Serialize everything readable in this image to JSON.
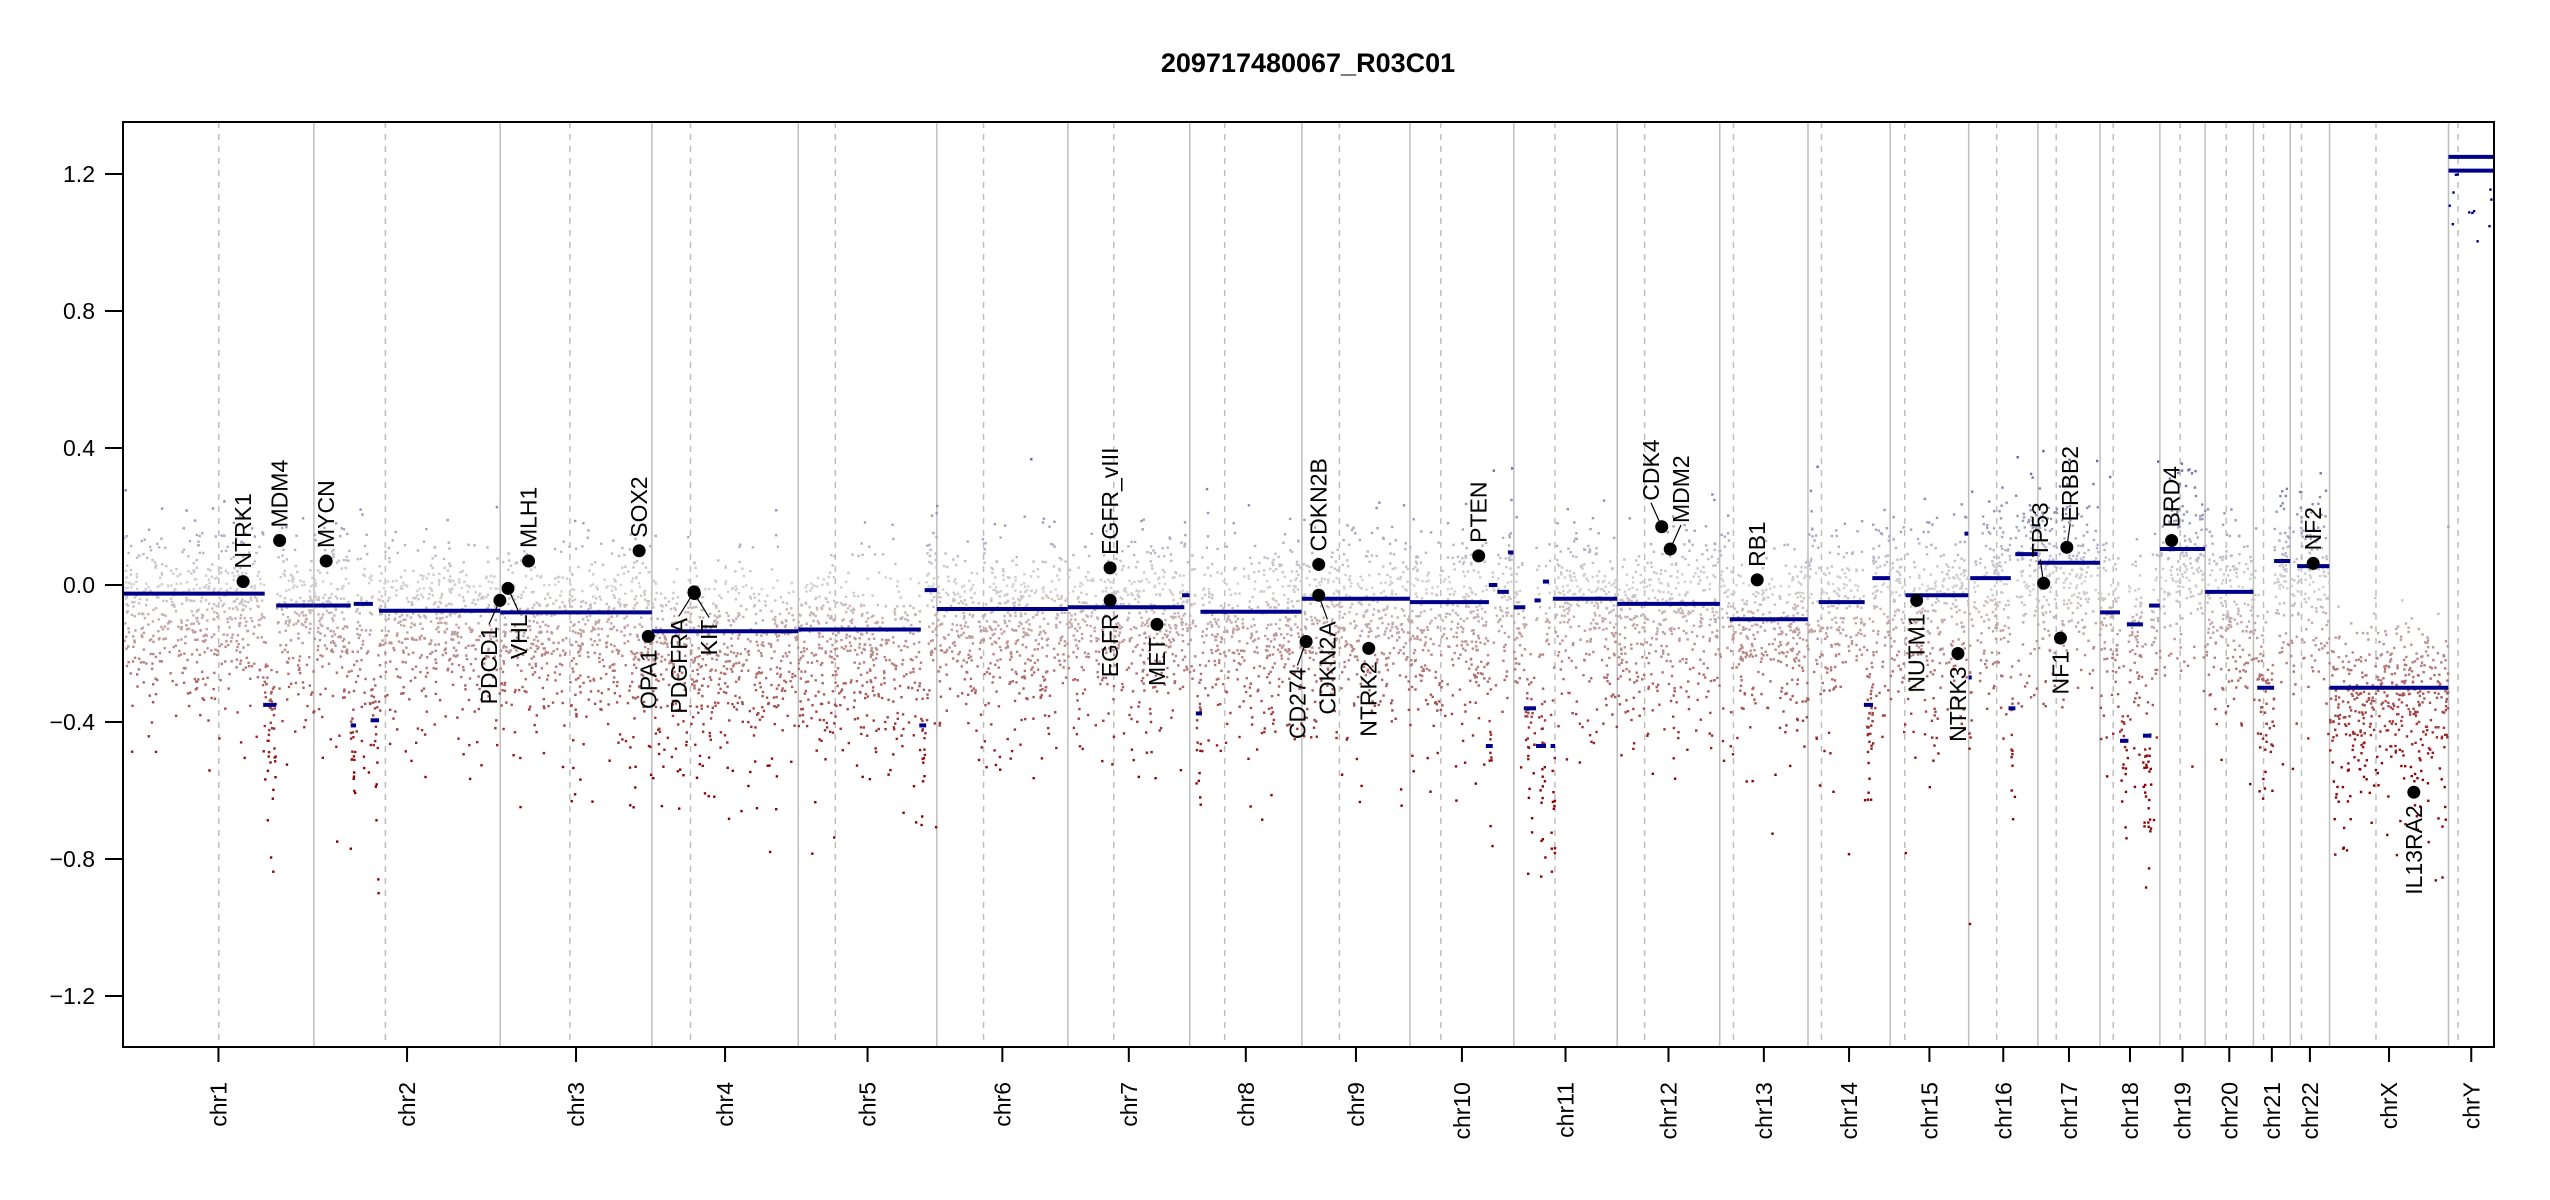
{
  "chart_data": {
    "type": "scatter",
    "title": "209717480067_R03C01",
    "xlabel": "",
    "ylabel": "",
    "ylim": [
      -1.35,
      1.35
    ],
    "yticks": [
      1.2,
      0.8,
      0.4,
      0.0,
      -0.4,
      -0.8,
      -1.2
    ],
    "ytick_labels": [
      "1.2",
      "0.8",
      "0.4",
      "0.0",
      "−0.4",
      "−0.8",
      "−1.2"
    ],
    "colors": {
      "gain": "#00008b",
      "neutral": "#d3d3d3",
      "loss": "#8b0000",
      "segment": "#00008b",
      "gene_point": "#000000",
      "chrom_line": "#bebebe"
    },
    "chromosomes": [
      "chr1",
      "chr2",
      "chr3",
      "chr4",
      "chr5",
      "chr6",
      "chr7",
      "chr8",
      "chr9",
      "chr10",
      "chr11",
      "chr12",
      "chr13",
      "chr14",
      "chr15",
      "chr16",
      "chr17",
      "chr18",
      "chr19",
      "chr20",
      "chr21",
      "chr22",
      "chrX",
      "chrY"
    ],
    "chrom_length_mb": [
      249.25,
      243.2,
      198.0,
      191.15,
      180.9,
      171.1,
      159.1,
      146.4,
      141.2,
      135.5,
      135.0,
      133.85,
      115.2,
      107.3,
      102.5,
      90.35,
      81.2,
      78.1,
      59.1,
      63.0,
      48.1,
      51.3,
      155.3,
      59.4
    ],
    "centromere_mb": [
      125,
      93.3,
      91,
      50.4,
      48.4,
      61,
      59.9,
      45.6,
      49,
      40.2,
      53.7,
      35.8,
      17.9,
      17.6,
      19,
      36.6,
      24,
      17.2,
      26.5,
      27.5,
      13.2,
      14.7,
      60.6,
      12.5
    ],
    "segments": [
      [
        "chr1",
        0,
        185,
        -0.025
      ],
      [
        "chr1",
        183,
        200,
        -0.35
      ],
      [
        "chr1",
        200,
        249,
        -0.06
      ],
      [
        "chr2",
        0,
        48,
        -0.06
      ],
      [
        "chr2",
        48,
        55,
        -0.41
      ],
      [
        "chr2",
        52,
        77,
        -0.055
      ],
      [
        "chr2",
        74,
        85,
        -0.395
      ],
      [
        "chr2",
        85,
        243,
        -0.075
      ],
      [
        "chr3",
        0,
        198,
        -0.08
      ],
      [
        "chr4",
        0,
        191,
        -0.135
      ],
      [
        "chr5",
        0,
        160,
        -0.13
      ],
      [
        "chr5",
        158,
        167,
        -0.41
      ],
      [
        "chr5",
        165,
        181,
        -0.015
      ],
      [
        "chr6",
        0,
        171,
        -0.07
      ],
      [
        "chr7",
        0,
        152,
        -0.065
      ],
      [
        "chr7",
        149,
        159,
        -0.03
      ],
      [
        "chr8",
        8,
        16,
        -0.375
      ],
      [
        "chr8",
        14,
        146,
        -0.078
      ],
      [
        "chr9",
        0,
        141,
        -0.04
      ],
      [
        "chr10",
        0,
        103,
        -0.05
      ],
      [
        "chr10",
        99,
        108,
        -0.47
      ],
      [
        "chr10",
        103,
        114,
        0.0
      ],
      [
        "chr10",
        114,
        129,
        -0.02
      ],
      [
        "chr10",
        128,
        135,
        0.095
      ],
      [
        "chr11",
        0,
        15,
        -0.065
      ],
      [
        "chr11",
        13,
        29,
        -0.36
      ],
      [
        "chr11",
        27,
        35,
        -0.045
      ],
      [
        "chr11",
        29,
        42,
        -0.47
      ],
      [
        "chr11",
        38,
        46,
        0.01
      ],
      [
        "chr11",
        48,
        54,
        -0.47
      ],
      [
        "chr11",
        51,
        135,
        -0.04
      ],
      [
        "chr12",
        0,
        134,
        -0.055
      ],
      [
        "chr13",
        13,
        115,
        -0.1
      ],
      [
        "chr14",
        14,
        74,
        -0.05
      ],
      [
        "chr14",
        73,
        85,
        -0.35
      ],
      [
        "chr14",
        84,
        107,
        0.02
      ],
      [
        "chr15",
        20,
        102,
        -0.03
      ],
      [
        "chr15",
        97,
        102,
        0.15
      ],
      [
        "chr16",
        0,
        4,
        -0.27
      ],
      [
        "chr16",
        2,
        55,
        0.02
      ],
      [
        "chr16",
        52,
        61,
        -0.36
      ],
      [
        "chr16",
        61,
        90,
        0.09
      ],
      [
        "chr17",
        0,
        81,
        0.065
      ],
      [
        "chr18",
        0,
        26,
        -0.08
      ],
      [
        "chr18",
        26,
        37,
        -0.455
      ],
      [
        "chr18",
        35,
        56,
        -0.115
      ],
      [
        "chr18",
        56,
        67,
        -0.44
      ],
      [
        "chr18",
        64,
        78,
        -0.06
      ],
      [
        "chr19",
        0,
        59,
        0.105
      ],
      [
        "chr20",
        0,
        63,
        -0.02
      ],
      [
        "chr21",
        5,
        27,
        -0.3
      ],
      [
        "chr21",
        27,
        48,
        0.07
      ],
      [
        "chr22",
        9,
        51,
        0.055
      ],
      [
        "chrX",
        0,
        155,
        -0.3
      ],
      [
        "chrY",
        0,
        59,
        1.21
      ],
      [
        "chrY",
        0,
        59,
        1.25
      ]
    ],
    "genes": [
      {
        "name": "NTRK1",
        "chr": "chr1",
        "pos_mb": 156.8,
        "value": 0.01
      },
      {
        "name": "MDM4",
        "chr": "chr1",
        "pos_mb": 204.5,
        "value": 0.13
      },
      {
        "name": "MYCN",
        "chr": "chr2",
        "pos_mb": 16.0,
        "value": 0.07
      },
      {
        "name": "PDCD1",
        "chr": "chr2",
        "pos_mb": 242.8,
        "value": -0.045
      },
      {
        "name": "VHL",
        "chr": "chr3",
        "pos_mb": 10.2,
        "value": -0.01
      },
      {
        "name": "MLH1",
        "chr": "chr3",
        "pos_mb": 37.0,
        "value": 0.07
      },
      {
        "name": "SOX2",
        "chr": "chr3",
        "pos_mb": 181.4,
        "value": 0.1
      },
      {
        "name": "OPA1",
        "chr": "chr3",
        "pos_mb": 193.3,
        "value": -0.15
      },
      {
        "name": "PDGFRA",
        "chr": "chr4",
        "pos_mb": 55.1,
        "value": -0.02
      },
      {
        "name": "KIT",
        "chr": "chr4",
        "pos_mb": 55.5,
        "value": -0.025
      },
      {
        "name": "EGFR_vIII",
        "chr": "chr7",
        "pos_mb": 55.1,
        "value": 0.05
      },
      {
        "name": "EGFR",
        "chr": "chr7",
        "pos_mb": 55.2,
        "value": -0.045
      },
      {
        "name": "MET",
        "chr": "chr7",
        "pos_mb": 116.3,
        "value": -0.115
      },
      {
        "name": "CD274",
        "chr": "chr9",
        "pos_mb": 5.5,
        "value": -0.165
      },
      {
        "name": "CDKN2A",
        "chr": "chr9",
        "pos_mb": 21.97,
        "value": -0.03
      },
      {
        "name": "CDKN2B",
        "chr": "chr9",
        "pos_mb": 22.0,
        "value": 0.06
      },
      {
        "name": "NTRK2",
        "chr": "chr9",
        "pos_mb": 87.3,
        "value": -0.185
      },
      {
        "name": "PTEN",
        "chr": "chr10",
        "pos_mb": 89.6,
        "value": 0.085
      },
      {
        "name": "CDK4",
        "chr": "chr12",
        "pos_mb": 58.1,
        "value": 0.17
      },
      {
        "name": "MDM2",
        "chr": "chr12",
        "pos_mb": 69.2,
        "value": 0.105
      },
      {
        "name": "RB1",
        "chr": "chr13",
        "pos_mb": 48.9,
        "value": 0.015
      },
      {
        "name": "NUTM1",
        "chr": "chr15",
        "pos_mb": 34.6,
        "value": -0.045
      },
      {
        "name": "NTRK3",
        "chr": "chr15",
        "pos_mb": 88.5,
        "value": -0.2
      },
      {
        "name": "TP53",
        "chr": "chr17",
        "pos_mb": 7.5,
        "value": 0.005
      },
      {
        "name": "NF1",
        "chr": "chr17",
        "pos_mb": 29.5,
        "value": -0.155
      },
      {
        "name": "ERBB2",
        "chr": "chr17",
        "pos_mb": 37.8,
        "value": 0.11
      },
      {
        "name": "BRD4",
        "chr": "chr19",
        "pos_mb": 15.3,
        "value": 0.13
      },
      {
        "name": "NF2",
        "chr": "chr22",
        "pos_mb": 29.9,
        "value": 0.063
      },
      {
        "name": "IL13RA2",
        "chr": "chrX",
        "pos_mb": 110.0,
        "value": -0.605
      }
    ]
  }
}
